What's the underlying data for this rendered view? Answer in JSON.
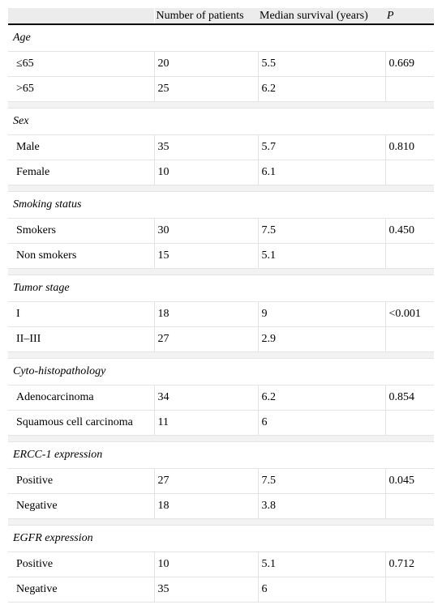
{
  "header": {
    "col_blank": "",
    "col_patients": "Number of patients",
    "col_survival": "Median survival (years)",
    "col_p": "P"
  },
  "groups": [
    {
      "title": "Age",
      "rows": [
        {
          "label": "≤65",
          "patients": "20",
          "survival": "5.5",
          "p": "0.669"
        },
        {
          "label": ">65",
          "patients": "25",
          "survival": "6.2",
          "p": ""
        }
      ]
    },
    {
      "title": "Sex",
      "rows": [
        {
          "label": "Male",
          "patients": "35",
          "survival": "5.7",
          "p": "0.810"
        },
        {
          "label": "Female",
          "patients": "10",
          "survival": "6.1",
          "p": ""
        }
      ]
    },
    {
      "title": "Smoking status",
      "rows": [
        {
          "label": "Smokers",
          "patients": "30",
          "survival": "7.5",
          "p": "0.450"
        },
        {
          "label": "Non smokers",
          "patients": "15",
          "survival": "5.1",
          "p": ""
        }
      ]
    },
    {
      "title": "Tumor stage",
      "rows": [
        {
          "label": "I",
          "patients": "18",
          "survival": "9",
          "p": "<0.001"
        },
        {
          "label": "II–III",
          "patients": "27",
          "survival": "2.9",
          "p": ""
        }
      ]
    },
    {
      "title": "Cyto-histopathology",
      "rows": [
        {
          "label": "Adenocarcinoma",
          "patients": "34",
          "survival": "6.2",
          "p": "0.854"
        },
        {
          "label": "Squamous cell carcinoma",
          "patients": "11",
          "survival": "6",
          "p": ""
        }
      ]
    },
    {
      "title": "ERCC-1 expression",
      "rows": [
        {
          "label": "Positive",
          "patients": "27",
          "survival": "7.5",
          "p": "0.045"
        },
        {
          "label": "Negative",
          "patients": "18",
          "survival": "3.8",
          "p": ""
        }
      ]
    },
    {
      "title": "EGFR expression",
      "rows": [
        {
          "label": "Positive",
          "patients": "10",
          "survival": "5.1",
          "p": "0.712"
        },
        {
          "label": "Negative",
          "patients": "35",
          "survival": "6",
          "p": ""
        }
      ]
    }
  ]
}
